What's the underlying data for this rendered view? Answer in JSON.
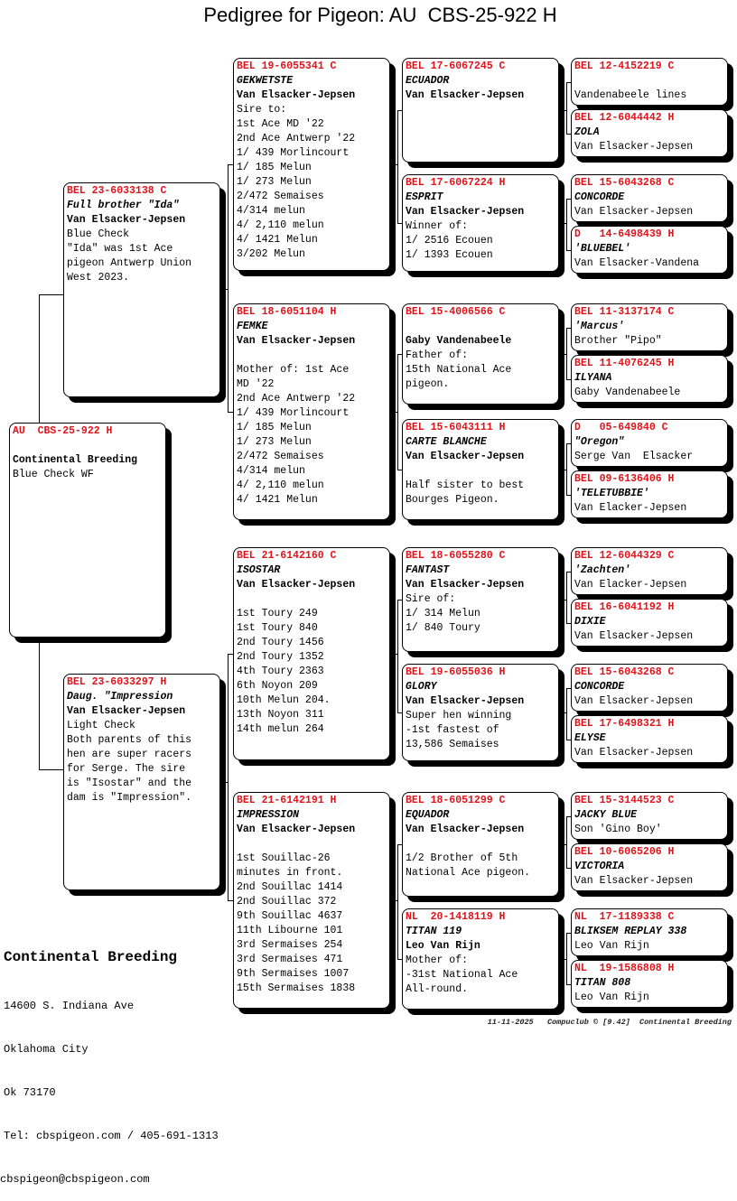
{
  "title": "Pedigree for Pigeon: AU  CBS-25-922 H",
  "pigeons": {
    "subject": {
      "ring": "AU  CBS-25-922 H",
      "name": "",
      "breeder": "Continental Breeding",
      "notes": [
        "Blue Check WF"
      ]
    },
    "sire": {
      "ring": "BEL 23-6033138 C",
      "name": "Full brother \"Ida\"",
      "breeder": "Van Elsacker-Jepsen",
      "notes": [
        "Blue Check",
        "\"Ida\" was 1st Ace",
        "pigeon Antwerp Union",
        "West 2023."
      ]
    },
    "dam": {
      "ring": "BEL 23-6033297 H",
      "name": "Daug. \"Impression",
      "breeder": "Van Elsacker-Jepsen",
      "notes": [
        "Light Check",
        "Both parents of this",
        "hen are super racers",
        "for Serge. The sire",
        "is \"Isostar\" and the",
        "dam is \"Impression\"."
      ]
    },
    "ss": {
      "ring": "BEL 19-6055341 C",
      "name": "GEKWETSTE",
      "breeder": "Van Elsacker-Jepsen",
      "notes": [
        "Sire to:",
        "1st Ace MD '22",
        "2nd Ace Antwerp '22",
        "1/ 439 Morlincourt",
        "1/ 185 Melun",
        "1/ 273 Melun",
        "2/472 Semaises",
        "4/314 melun",
        "4/ 2,110 melun",
        "4/ 1421 Melun",
        "3/202 Melun"
      ]
    },
    "sd": {
      "ring": "BEL 18-6051104 H",
      "name": "FEMKE",
      "breeder": "Van Elsacker-Jepsen",
      "notes": [
        "",
        "Mother of: 1st Ace",
        "MD '22",
        "2nd Ace Antwerp '22",
        "1/ 439 Morlincourt",
        "1/ 185 Melun",
        "1/ 273 Melun",
        "2/472 Semaises",
        "4/314 melun",
        "4/ 2,110 melun",
        "4/ 1421 Melun"
      ]
    },
    "ds": {
      "ring": "BEL 21-6142160 C",
      "name": "ISOSTAR",
      "breeder": "Van Elsacker-Jepsen",
      "notes": [
        "",
        "1st Toury 249",
        "1st Toury 840",
        "2nd Toury 1456",
        "2nd Toury 1352",
        "4th Toury 2363",
        "6th Noyon 209",
        "10th Melun 204.",
        "13th Noyon 311",
        "14th melun 264"
      ]
    },
    "dd": {
      "ring": "BEL 21-6142191 H",
      "name": "IMPRESSION",
      "breeder": "Van Elsacker-Jepsen",
      "notes": [
        "",
        "1st Souillac-26",
        "minutes in front.",
        "2nd Souillac 1414",
        "2nd Souillac 372",
        "9th Souillac 4637",
        "11th Libourne 101",
        "3rd Sermaises 254",
        "3rd Sermaises 471",
        "9th Sermaises 1007",
        "15th Sermaises 1838"
      ]
    },
    "sss": {
      "ring": "BEL 17-6067245 C",
      "name": "ECUADOR",
      "breeder": "Van Elsacker-Jepsen",
      "notes": []
    },
    "ssd": {
      "ring": "BEL 17-6067224 H",
      "name": "ESPRIT",
      "breeder": "Van Elsacker-Jepsen",
      "notes": [
        "Winner of:",
        "1/ 2516 Ecouen",
        "1/ 1393 Ecouen"
      ]
    },
    "sds": {
      "ring": "BEL 15-4006566 C",
      "name": "",
      "breeder": "Gaby Vandenabeele",
      "notes": [
        "Father of:",
        "15th National Ace",
        "pigeon."
      ]
    },
    "sdd": {
      "ring": "BEL 15-6043111 H",
      "name": "CARTE BLANCHE",
      "breeder": "Van Elsacker-Jepsen",
      "notes": [
        "",
        "Half sister to best",
        "Bourges Pigeon."
      ]
    },
    "dss": {
      "ring": "BEL 18-6055280 C",
      "name": "FANTAST",
      "breeder": "Van Elsacker-Jepsen",
      "notes": [
        "Sire of:",
        "1/ 314 Melun",
        "1/ 840 Toury"
      ]
    },
    "dsd": {
      "ring": "BEL 19-6055036 H",
      "name": "GLORY",
      "breeder": "Van Elsacker-Jepsen",
      "notes": [
        "Super hen winning",
        "-1st fastest of",
        "13,586 Semaises"
      ]
    },
    "dds": {
      "ring": "BEL 18-6051299 C",
      "name": "EQUADOR",
      "breeder": "Van Elsacker-Jepsen",
      "notes": [
        "",
        "1/2 Brother of 5th",
        "National Ace pigeon."
      ]
    },
    "ddd": {
      "ring": "NL  20-1418119 H",
      "name": "TITAN 119",
      "breeder": "Leo Van Rijn",
      "notes": [
        "Mother of:",
        "-31st National Ace",
        "All-round."
      ]
    },
    "ssss": {
      "ring": "BEL 12-4152219 C",
      "name": "",
      "breeder": "Vandenabeele lines",
      "notes": []
    },
    "sssd": {
      "ring": "BEL 12-6044442 H",
      "name": "ZOLA",
      "breeder": "Van Elsacker-Jepsen",
      "notes": []
    },
    "ssds": {
      "ring": "BEL 15-6043268 C",
      "name": "CONCORDE",
      "breeder": "Van Elsacker-Jepsen",
      "notes": []
    },
    "ssdd": {
      "ring": "D   14-6498439 H",
      "name": "'BLUEBEL'",
      "breeder": "Van Elsacker-Vandena",
      "notes": []
    },
    "sdss": {
      "ring": "BEL 11-3137174 C",
      "name": "'Marcus'",
      "breeder": "Brother \"Pipo\"",
      "notes": []
    },
    "sdsd": {
      "ring": "BEL 11-4076245 H",
      "name": "ILYANA",
      "breeder": "Gaby Vandenabeele",
      "notes": []
    },
    "sdds": {
      "ring": "D   05-649840 C",
      "name": "\"Oregon\"",
      "breeder": "Serge Van  Elsacker",
      "notes": []
    },
    "sddd": {
      "ring": "BEL 09-6136406 H",
      "name": "'TELETUBBIE'",
      "breeder": "Van Elacker-Jepsen",
      "notes": []
    },
    "dsss": {
      "ring": "BEL 12-6044329 C",
      "name": "'Zachten'",
      "breeder": "Van Elacker-Jepsen",
      "notes": []
    },
    "dssd": {
      "ring": "BEL 16-6041192 H",
      "name": "DIXIE",
      "breeder": "Van Elsacker-Jepsen",
      "notes": []
    },
    "dsds": {
      "ring": "BEL 15-6043268 C",
      "name": "CONCORDE",
      "breeder": "Van Elsacker-Jepsen",
      "notes": []
    },
    "dsdd": {
      "ring": "BEL 17-6498321 H",
      "name": "ELYSE",
      "breeder": "Van Elsacker-Jepsen",
      "notes": []
    },
    "ddss": {
      "ring": "BEL 15-3144523 C",
      "name": "JACKY BLUE",
      "breeder": "Son 'Gino Boy'",
      "notes": []
    },
    "ddsd": {
      "ring": "BEL 10-6065206 H",
      "name": "VICTORIA",
      "breeder": "Van Elsacker-Jepsen",
      "notes": []
    },
    "ddds": {
      "ring": "NL  17-1189338 C",
      "name": "BLIKSEM REPLAY 338",
      "breeder": "Leo Van Rijn",
      "notes": []
    },
    "dddd": {
      "ring": "NL  19-1586808 H",
      "name": "TITAN 808",
      "breeder": "Leo Van Rijn",
      "notes": []
    }
  },
  "owner": {
    "name": "Continental Breeding",
    "address": "14600 S. Indiana Ave",
    "city": "Oklahoma City",
    "state_zip": "Ok 73170",
    "tel": "Tel: cbspigeon.com / 405-691-1313",
    "email": "cbspigeon@cbspigeon.com"
  },
  "footer": "11-11-2025   Compuclub © [9.42]  Continental Breeding",
  "colors": {
    "ring": "#e0141b",
    "shadow": "#000000"
  }
}
